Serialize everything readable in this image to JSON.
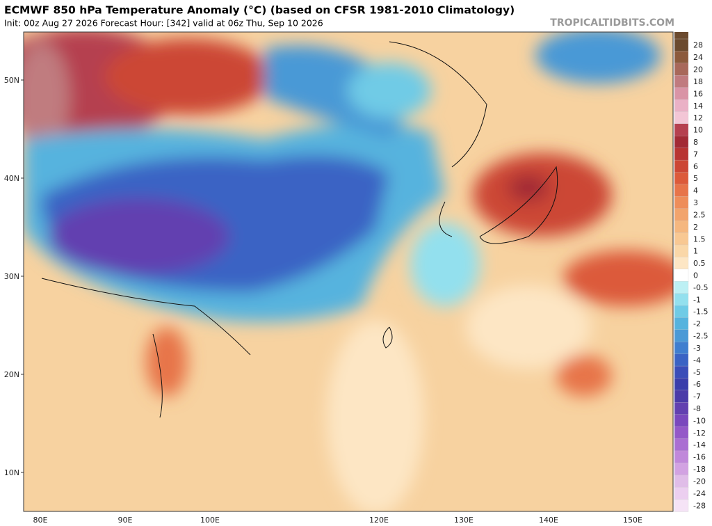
{
  "header": {
    "title": "ECMWF 850 hPa Temperature Anomaly (°C) (based on CFSR 1981-2010 Climatology)",
    "subtitle": "Init: 00z Aug 27 2026   Forecast Hour: [342]   valid at 06z Thu, Sep 10 2026",
    "credit": "TROPICALTIDBITS.COM"
  },
  "axes": {
    "lat_labels": [
      "50N",
      "40N",
      "30N",
      "20N",
      "10N"
    ],
    "lon_labels": [
      "80E",
      "90E",
      "100E",
      "120E",
      "130E",
      "140E",
      "150E"
    ]
  },
  "colorbar": {
    "labels": [
      "28",
      "24",
      "20",
      "18",
      "16",
      "14",
      "12",
      "10",
      "8",
      "7",
      "6",
      "5",
      "4",
      "3",
      "2.5",
      "2",
      "1.5",
      "1",
      "0.5",
      "0",
      "-0.5",
      "-1",
      "-1.5",
      "-2",
      "-2.5",
      "-3",
      "-4",
      "-5",
      "-6",
      "-7",
      "-8",
      "-10",
      "-12",
      "-14",
      "-16",
      "-18",
      "-20",
      "-24",
      "-28"
    ],
    "colors": [
      "#6b4a2e",
      "#8c5a3c",
      "#a8685a",
      "#c07b7f",
      "#d994a6",
      "#eab1c6",
      "#f3c6d6",
      "#b5404f",
      "#a22a35",
      "#b83432",
      "#cc4634",
      "#dc5a3a",
      "#e7744a",
      "#ee8d5a",
      "#f2a46c",
      "#f5b77f",
      "#f8c893",
      "#fad7a8",
      "#fde6c4",
      "#ffffff",
      "#bdf0f4",
      "#93e0ee",
      "#6fcbe6",
      "#56b3de",
      "#4a99d6",
      "#3f7ecf",
      "#3a63c4",
      "#3a4db8",
      "#3a3eab",
      "#4a3aa8",
      "#6240b0",
      "#7a48bd",
      "#9458c8",
      "#aa6fd2",
      "#c088da",
      "#d2a2e2",
      "#e0bde8",
      "#eccff0",
      "#f5e3f6"
    ]
  }
}
